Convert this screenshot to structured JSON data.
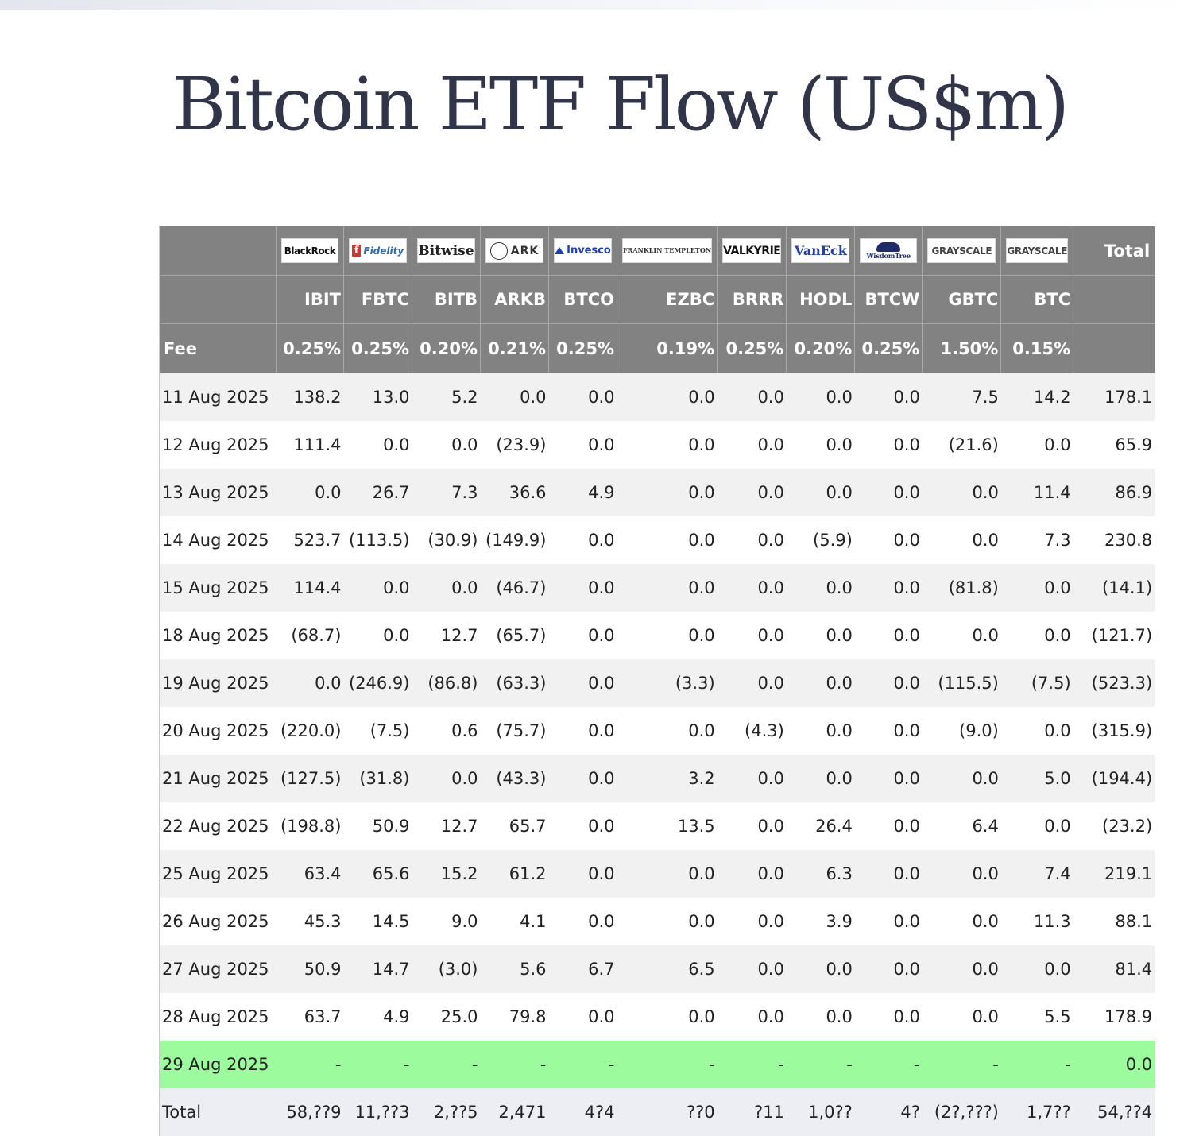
{
  "page": {
    "title": "Bitcoin ETF Flow (US$m)"
  },
  "table": {
    "logos": [
      {
        "name": "BlackRock",
        "icon": "blackrock-logo"
      },
      {
        "name": "Fidelity",
        "icon": "fidelity-logo"
      },
      {
        "name": "Bitwise",
        "icon": "bitwise-logo"
      },
      {
        "name": "ARK",
        "icon": "ark-invest-logo"
      },
      {
        "name": "Invesco",
        "icon": "invesco-logo"
      },
      {
        "name": "FRANKLIN TEMPLETON",
        "icon": "franklin-templeton-logo"
      },
      {
        "name": "VALKYRIE",
        "icon": "valkyrie-logo"
      },
      {
        "name": "VanEck",
        "icon": "vaneck-logo"
      },
      {
        "name": "WisdomTree",
        "icon": "wisdomtree-logo"
      },
      {
        "name": "GRAYSCALE",
        "icon": "grayscale-logo"
      },
      {
        "name": "GRAYSCALE",
        "icon": "grayscale-logo"
      }
    ],
    "total_header": "Total",
    "tickers": [
      "IBIT",
      "FBTC",
      "BITB",
      "ARKB",
      "BTCO",
      "EZBC",
      "BRRR",
      "HODL",
      "BTCW",
      "GBTC",
      "BTC"
    ],
    "fee_label": "Fee",
    "fees": [
      "0.25%",
      "0.25%",
      "0.20%",
      "0.21%",
      "0.25%",
      "0.19%",
      "0.25%",
      "0.20%",
      "0.25%",
      "1.50%",
      "0.15%"
    ],
    "rows": [
      {
        "date": "11 Aug 2025",
        "values": [
          "138.2",
          "13.0",
          "5.2",
          "0.0",
          "0.0",
          "0.0",
          "0.0",
          "0.0",
          "0.0",
          "7.5",
          "14.2"
        ],
        "total": "178.1"
      },
      {
        "date": "12 Aug 2025",
        "values": [
          "111.4",
          "0.0",
          "0.0",
          "(23.9)",
          "0.0",
          "0.0",
          "0.0",
          "0.0",
          "0.0",
          "(21.6)",
          "0.0"
        ],
        "total": "65.9"
      },
      {
        "date": "13 Aug 2025",
        "values": [
          "0.0",
          "26.7",
          "7.3",
          "36.6",
          "4.9",
          "0.0",
          "0.0",
          "0.0",
          "0.0",
          "0.0",
          "11.4"
        ],
        "total": "86.9"
      },
      {
        "date": "14 Aug 2025",
        "values": [
          "523.7",
          "(113.5)",
          "(30.9)",
          "(149.9)",
          "0.0",
          "0.0",
          "0.0",
          "(5.9)",
          "0.0",
          "0.0",
          "7.3"
        ],
        "total": "230.8"
      },
      {
        "date": "15 Aug 2025",
        "values": [
          "114.4",
          "0.0",
          "0.0",
          "(46.7)",
          "0.0",
          "0.0",
          "0.0",
          "0.0",
          "0.0",
          "(81.8)",
          "0.0"
        ],
        "total": "(14.1)"
      },
      {
        "date": "18 Aug 2025",
        "values": [
          "(68.7)",
          "0.0",
          "12.7",
          "(65.7)",
          "0.0",
          "0.0",
          "0.0",
          "0.0",
          "0.0",
          "0.0",
          "0.0"
        ],
        "total": "(121.7)"
      },
      {
        "date": "19 Aug 2025",
        "values": [
          "0.0",
          "(246.9)",
          "(86.8)",
          "(63.3)",
          "0.0",
          "(3.3)",
          "0.0",
          "0.0",
          "0.0",
          "(115.5)",
          "(7.5)"
        ],
        "total": "(523.3)"
      },
      {
        "date": "20 Aug 2025",
        "values": [
          "(220.0)",
          "(7.5)",
          "0.6",
          "(75.7)",
          "0.0",
          "0.0",
          "(4.3)",
          "0.0",
          "0.0",
          "(9.0)",
          "0.0"
        ],
        "total": "(315.9)"
      },
      {
        "date": "21 Aug 2025",
        "values": [
          "(127.5)",
          "(31.8)",
          "0.0",
          "(43.3)",
          "0.0",
          "3.2",
          "0.0",
          "0.0",
          "0.0",
          "0.0",
          "5.0"
        ],
        "total": "(194.4)"
      },
      {
        "date": "22 Aug 2025",
        "values": [
          "(198.8)",
          "50.9",
          "12.7",
          "65.7",
          "0.0",
          "13.5",
          "0.0",
          "26.4",
          "0.0",
          "6.4",
          "0.0"
        ],
        "total": "(23.2)"
      },
      {
        "date": "25 Aug 2025",
        "values": [
          "63.4",
          "65.6",
          "15.2",
          "61.2",
          "0.0",
          "0.0",
          "0.0",
          "6.3",
          "0.0",
          "0.0",
          "7.4"
        ],
        "total": "219.1"
      },
      {
        "date": "26 Aug 2025",
        "values": [
          "45.3",
          "14.5",
          "9.0",
          "4.1",
          "0.0",
          "0.0",
          "0.0",
          "3.9",
          "0.0",
          "0.0",
          "11.3"
        ],
        "total": "88.1"
      },
      {
        "date": "27 Aug 2025",
        "values": [
          "50.9",
          "14.7",
          "(3.0)",
          "5.6",
          "6.7",
          "6.5",
          "0.0",
          "0.0",
          "0.0",
          "0.0",
          "0.0"
        ],
        "total": "81.4"
      },
      {
        "date": "28 Aug 2025",
        "values": [
          "63.7",
          "4.9",
          "25.0",
          "79.8",
          "0.0",
          "0.0",
          "0.0",
          "0.0",
          "0.0",
          "0.0",
          "5.5"
        ],
        "total": "178.9"
      },
      {
        "date": "29 Aug 2025",
        "values": [
          "-",
          "-",
          "-",
          "-",
          "-",
          "-",
          "-",
          "-",
          "-",
          "-",
          "-"
        ],
        "total": "0.0",
        "highlight": true
      }
    ],
    "total_row": {
      "label": "Total",
      "values": [
        "58,??9",
        "11,??3",
        "2,??5",
        "2,471",
        "4?4",
        "??0",
        "?11",
        "1,0??",
        "4?",
        "(2?,???)",
        "1,7??"
      ],
      "total": "54,??4"
    }
  },
  "colors": {
    "header_bg": "#828282",
    "negative": "#e02020",
    "highlight_row": "#9cfb9c",
    "title": "#30354a"
  }
}
